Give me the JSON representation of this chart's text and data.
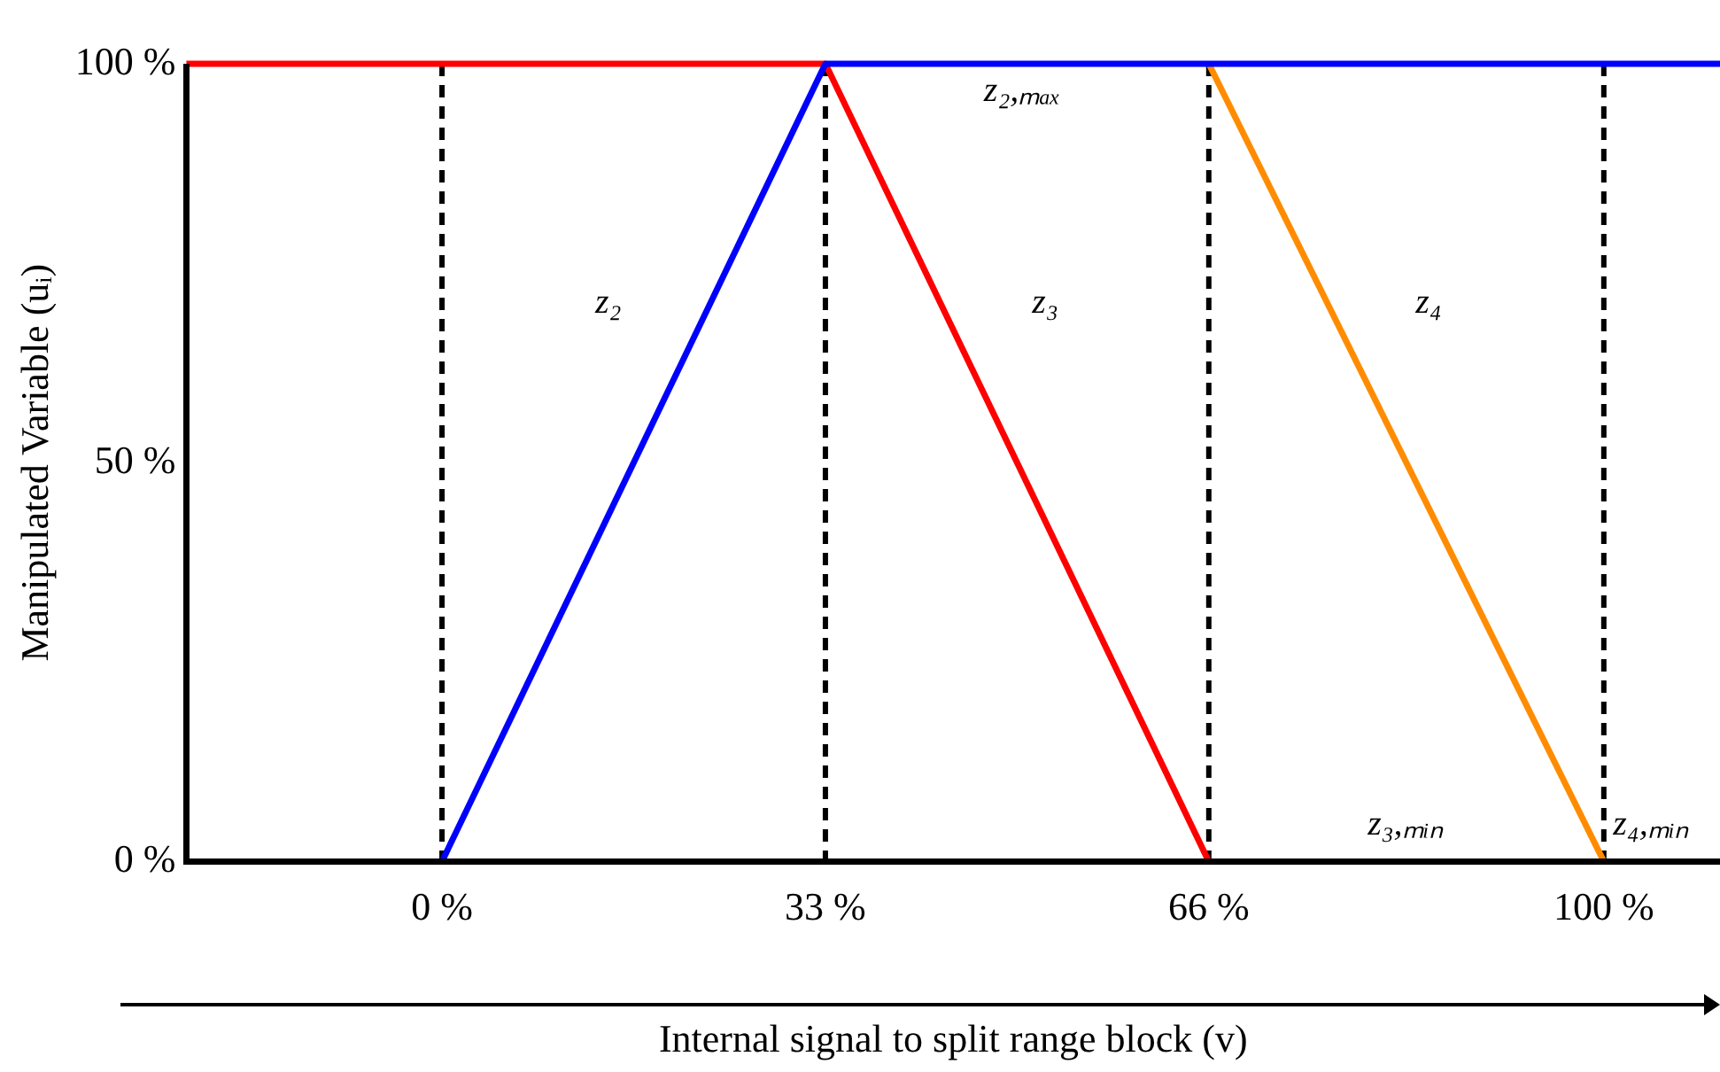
{
  "chart_data": {
    "type": "line",
    "xlabel": "Internal signal to split range block (v)",
    "ylabel": "Manipulated Variable (uᵢ)",
    "xlim": [
      -22,
      110
    ],
    "ylim": [
      0,
      100
    ],
    "xticks": [
      {
        "value": 0,
        "label": "0 %"
      },
      {
        "value": 33,
        "label": "33 %"
      },
      {
        "value": 66,
        "label": "66 %"
      },
      {
        "value": 100,
        "label": "100 %"
      }
    ],
    "yticks": [
      {
        "value": 0,
        "label": "0 %"
      },
      {
        "value": 50,
        "label": "50 %"
      },
      {
        "value": 100,
        "label": "100 %"
      }
    ],
    "series": [
      {
        "color": "#0000ff",
        "x": [
          -22,
          0,
          33,
          110
        ],
        "values": [
          0,
          0,
          100,
          100
        ]
      },
      {
        "color": "#ff0000",
        "x": [
          -22,
          33,
          66,
          110
        ],
        "values": [
          100,
          100,
          0,
          0
        ]
      },
      {
        "color": "#ff8c00",
        "x": [
          66,
          100
        ],
        "values": [
          100,
          0
        ]
      }
    ],
    "ref_lines": [
      {
        "axis": "x",
        "value": 0,
        "color": "#000000",
        "line_style": "dashed"
      },
      {
        "axis": "x",
        "value": 33,
        "color": "#000000",
        "line_style": "dashed"
      },
      {
        "axis": "x",
        "value": 66,
        "color": "#000000",
        "line_style": "dashed"
      },
      {
        "axis": "x",
        "value": 100,
        "color": "#000000",
        "line_style": "dashed"
      }
    ],
    "annotations": [
      "z₂",
      "z₃",
      "z₄",
      "z₂,ₘₐₓ",
      "z₃,ₘᵢₙ",
      "z₄,ₘᵢₙ"
    ],
    "grid": false,
    "legend": false,
    "marker": "none",
    "line_style": "solid"
  }
}
